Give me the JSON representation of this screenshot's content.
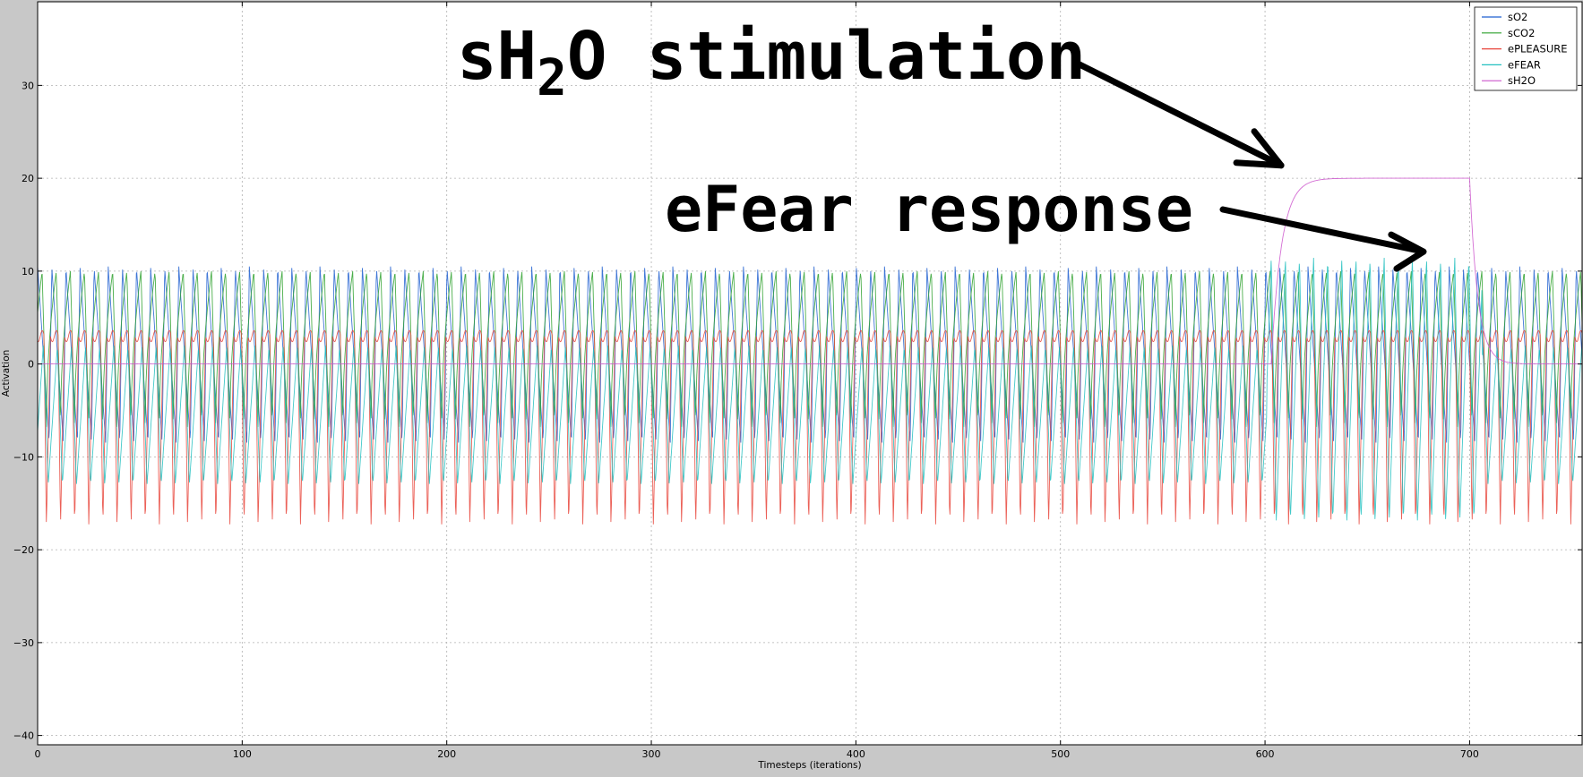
{
  "chart_data": {
    "type": "line",
    "title": "",
    "xlabel": "Timesteps (iterations)",
    "ylabel": "Activation",
    "xlim": [
      0,
      755
    ],
    "ylim": [
      -41,
      39
    ],
    "xticks": [
      0,
      100,
      200,
      300,
      400,
      500,
      600,
      700
    ],
    "yticks": [
      -40,
      -30,
      -20,
      -10,
      0,
      10,
      20,
      30
    ],
    "grid": true,
    "legend_position": "top-right",
    "period": 6.9,
    "series": [
      {
        "name": "sO2",
        "color": "#1f5fd0",
        "description": "sawtooth oscillation",
        "max": 10.5,
        "min": -8.5
      },
      {
        "name": "sCO2",
        "color": "#2ca02c",
        "description": "sawtooth oscillation, phase shifted",
        "max": 10,
        "min": -7
      },
      {
        "name": "ePLEASURE",
        "color": "#e8443a",
        "description": "spiky oscillation, peaks near 3, troughs near -17.5",
        "max": 3,
        "min": -17.5
      },
      {
        "name": "eFEAR",
        "color": "#22c0c0",
        "description": "low during baseline, rises to about 11 during sH2O stimulation",
        "baseline_max": 2,
        "baseline_min": -13,
        "stim_max": 11.5,
        "stim_min": -17
      },
      {
        "name": "sH2O",
        "color": "#cc55cc",
        "description": "zero, ramps to 20 at about t=603, holds until about t=700, decays to 0",
        "stim_start": 603,
        "stim_end": 700,
        "level": 20
      }
    ],
    "annotations": [
      {
        "label": "sH",
        "sub": "2",
        "label2": "O stimulation",
        "target": [
          600,
          21
        ]
      },
      {
        "label": "eFear response",
        "target": [
          670,
          12
        ]
      }
    ]
  }
}
